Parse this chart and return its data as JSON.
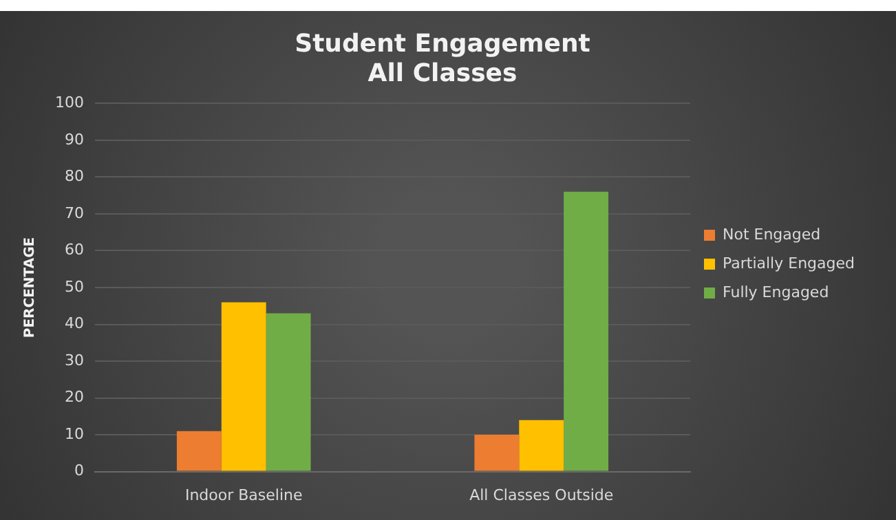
{
  "chart_data": {
    "type": "bar",
    "title": "Student Engagement\nAll Classes",
    "ylabel": "PERCENTAGE",
    "categories": [
      "Indoor Baseline",
      "All Classes Outside"
    ],
    "series": [
      {
        "name": "Not Engaged",
        "color": "#ed7d31",
        "values": [
          11,
          10
        ]
      },
      {
        "name": "Partially Engaged",
        "color": "#ffc000",
        "values": [
          46,
          14
        ]
      },
      {
        "name": "Fully Engaged",
        "color": "#70ad47",
        "values": [
          43,
          76
        ]
      }
    ],
    "ylim": [
      0,
      100
    ],
    "yticks": [
      0,
      10,
      20,
      30,
      40,
      50,
      60,
      70,
      80,
      90,
      100
    ],
    "grid": "y",
    "legend": "right"
  }
}
